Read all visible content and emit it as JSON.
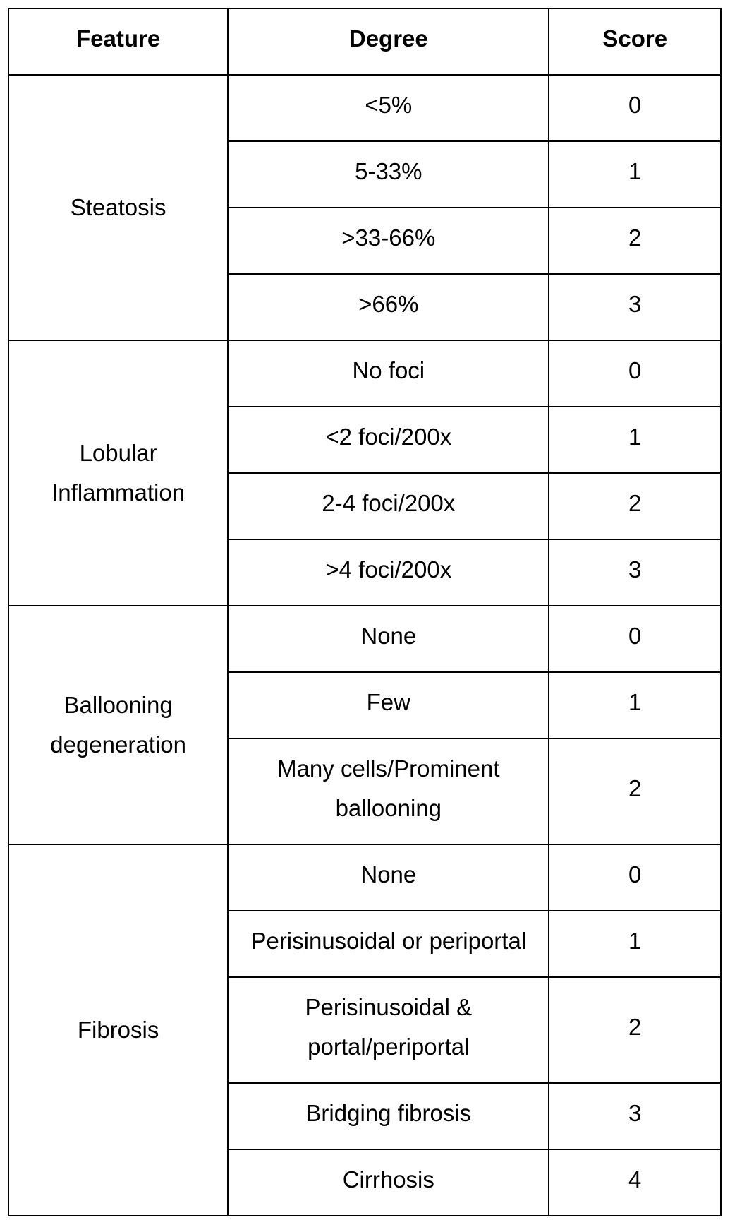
{
  "table": {
    "header": [
      "Feature",
      "Degree",
      "Score"
    ],
    "groups": [
      {
        "feature": "Steatosis",
        "items": [
          {
            "degree": "<5%",
            "score": 0
          },
          {
            "degree": "5-33%",
            "score": 1
          },
          {
            "degree": ">33-66%",
            "score": 2
          },
          {
            "degree": ">66%",
            "score": 3
          }
        ]
      },
      {
        "feature": "Lobular Inflammation",
        "items": [
          {
            "degree": "No foci",
            "score": 0
          },
          {
            "degree": "<2 foci/200x",
            "score": 1
          },
          {
            "degree": "2-4 foci/200x",
            "score": 2
          },
          {
            "degree": ">4 foci/200x",
            "score": 3
          }
        ]
      },
      {
        "feature": "Ballooning degeneration",
        "items": [
          {
            "degree": "None",
            "score": 0
          },
          {
            "degree": "Few",
            "score": 1
          },
          {
            "degree": "Many cells/Prominent ballooning",
            "score": 2
          }
        ]
      },
      {
        "feature": "Fibrosis",
        "items": [
          {
            "degree": "None",
            "score": 0
          },
          {
            "degree": "Perisinusoidal or periportal",
            "score": 1
          },
          {
            "degree": "Perisinusoidal & portal/periportal",
            "score": 2
          },
          {
            "degree": "Bridging fibrosis",
            "score": 3
          },
          {
            "degree": "Cirrhosis",
            "score": 4
          }
        ]
      }
    ]
  }
}
